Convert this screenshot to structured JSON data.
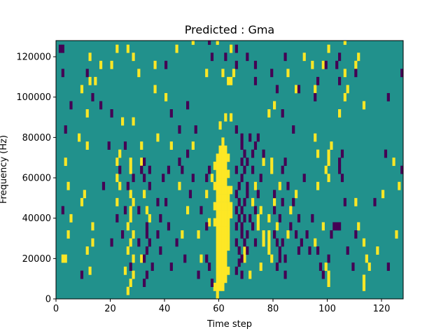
{
  "chart_data": {
    "type": "heatmap",
    "title": "Predicted : Gma",
    "xlabel": "Time step",
    "ylabel": "Frequency (Hz)",
    "xlim": [
      0,
      128
    ],
    "ylim": [
      0,
      128000
    ],
    "x_ticks": [
      0,
      20,
      40,
      60,
      80,
      100,
      120
    ],
    "x_tick_labels": [
      "0",
      "20",
      "40",
      "60",
      "80",
      "100",
      "120"
    ],
    "y_ticks": [
      0,
      20000,
      40000,
      60000,
      80000,
      100000,
      120000
    ],
    "y_tick_labels": [
      "0",
      "20000",
      "40000",
      "60000",
      "80000",
      "100000",
      "120000"
    ],
    "grid": false,
    "colormap": "viridis",
    "colors": {
      "background": "#21918c",
      "low": "#440154",
      "high": "#fde725"
    },
    "value_levels": [
      -1,
      0,
      1
    ],
    "cell_height_hz": 4000,
    "cell_width_steps": 1,
    "background_value": 0,
    "high_cells": [
      [
        26,
        2000
      ],
      [
        27,
        6000
      ],
      [
        27,
        26000
      ],
      [
        27,
        38000
      ],
      [
        27,
        42000
      ],
      [
        28,
        46000
      ],
      [
        28,
        30000
      ],
      [
        28,
        18000
      ],
      [
        28,
        10000
      ],
      [
        25,
        12000
      ],
      [
        26,
        22000
      ],
      [
        26,
        34000
      ],
      [
        27,
        50000
      ],
      [
        27,
        62000
      ],
      [
        27,
        66000
      ],
      [
        31,
        18000
      ],
      [
        31,
        66000
      ],
      [
        31,
        74000
      ],
      [
        32,
        50000
      ],
      [
        33,
        42000
      ],
      [
        34,
        38000
      ],
      [
        12,
        12000
      ],
      [
        13,
        26000
      ],
      [
        13,
        34000
      ],
      [
        11,
        22000
      ],
      [
        10,
        50000
      ],
      [
        9,
        46000
      ],
      [
        4,
        30000
      ],
      [
        5,
        38000
      ],
      [
        3,
        18000
      ],
      [
        2,
        18000
      ],
      [
        4,
        54000
      ],
      [
        3,
        66000
      ],
      [
        8,
        78000
      ],
      [
        11,
        74000
      ],
      [
        11,
        90000
      ],
      [
        22,
        66000
      ],
      [
        22,
        58000
      ],
      [
        22,
        46000
      ],
      [
        23,
        54000
      ],
      [
        23,
        70000
      ],
      [
        24,
        86000
      ],
      [
        28,
        86000
      ],
      [
        37,
        78000
      ],
      [
        42,
        74000
      ],
      [
        45,
        54000
      ],
      [
        46,
        30000
      ],
      [
        48,
        42000
      ],
      [
        50,
        74000
      ],
      [
        52,
        30000
      ],
      [
        53,
        18000
      ],
      [
        57,
        58000
      ],
      [
        58,
        54000
      ],
      [
        59,
        0
      ],
      [
        59,
        4000
      ],
      [
        59,
        8000
      ],
      [
        59,
        12000
      ],
      [
        59,
        16000
      ],
      [
        59,
        20000
      ],
      [
        59,
        24000
      ],
      [
        59,
        28000
      ],
      [
        59,
        32000
      ],
      [
        59,
        36000
      ],
      [
        59,
        40000
      ],
      [
        59,
        44000
      ],
      [
        59,
        48000
      ],
      [
        59,
        52000
      ],
      [
        59,
        56000
      ],
      [
        59,
        60000
      ],
      [
        59,
        64000
      ],
      [
        59,
        68000
      ],
      [
        60,
        4000
      ],
      [
        60,
        8000
      ],
      [
        60,
        12000
      ],
      [
        60,
        16000
      ],
      [
        60,
        20000
      ],
      [
        60,
        24000
      ],
      [
        60,
        28000
      ],
      [
        60,
        32000
      ],
      [
        60,
        36000
      ],
      [
        60,
        40000
      ],
      [
        60,
        44000
      ],
      [
        60,
        48000
      ],
      [
        60,
        52000
      ],
      [
        60,
        56000
      ],
      [
        60,
        60000
      ],
      [
        60,
        64000
      ],
      [
        60,
        68000
      ],
      [
        60,
        72000
      ],
      [
        61,
        4000
      ],
      [
        61,
        8000
      ],
      [
        61,
        12000
      ],
      [
        61,
        16000
      ],
      [
        61,
        20000
      ],
      [
        61,
        24000
      ],
      [
        61,
        28000
      ],
      [
        61,
        32000
      ],
      [
        61,
        36000
      ],
      [
        61,
        40000
      ],
      [
        61,
        44000
      ],
      [
        61,
        48000
      ],
      [
        61,
        52000
      ],
      [
        61,
        56000
      ],
      [
        61,
        60000
      ],
      [
        61,
        64000
      ],
      [
        61,
        68000
      ],
      [
        61,
        72000
      ],
      [
        61,
        76000
      ],
      [
        62,
        8000
      ],
      [
        62,
        12000
      ],
      [
        62,
        16000
      ],
      [
        62,
        20000
      ],
      [
        62,
        24000
      ],
      [
        62,
        28000
      ],
      [
        62,
        32000
      ],
      [
        62,
        36000
      ],
      [
        62,
        40000
      ],
      [
        62,
        44000
      ],
      [
        62,
        48000
      ],
      [
        62,
        52000
      ],
      [
        62,
        56000
      ],
      [
        62,
        60000
      ],
      [
        62,
        64000
      ],
      [
        62,
        68000
      ],
      [
        62,
        72000
      ],
      [
        63,
        12000
      ],
      [
        63,
        24000
      ],
      [
        63,
        28000
      ],
      [
        63,
        32000
      ],
      [
        63,
        36000
      ],
      [
        63,
        40000
      ],
      [
        63,
        44000
      ],
      [
        63,
        48000
      ],
      [
        63,
        52000
      ],
      [
        63,
        60000
      ],
      [
        63,
        68000
      ],
      [
        64,
        40000
      ],
      [
        64,
        44000
      ],
      [
        64,
        52000
      ],
      [
        58,
        4000
      ],
      [
        58,
        36000
      ],
      [
        58,
        44000
      ],
      [
        58,
        64000
      ],
      [
        62,
        88000
      ],
      [
        64,
        88000
      ],
      [
        60,
        84000
      ],
      [
        56,
        36000
      ],
      [
        55,
        50000
      ],
      [
        69,
        18000
      ],
      [
        69,
        22000
      ],
      [
        72,
        46000
      ],
      [
        73,
        54000
      ],
      [
        74,
        34000
      ],
      [
        74,
        38000
      ],
      [
        75,
        42000
      ],
      [
        76,
        26000
      ],
      [
        76,
        30000
      ],
      [
        75,
        14000
      ],
      [
        71,
        10000
      ],
      [
        76,
        66000
      ],
      [
        78,
        38000
      ],
      [
        78,
        30000
      ],
      [
        78,
        26000
      ],
      [
        78,
        22000
      ],
      [
        79,
        18000
      ],
      [
        79,
        62000
      ],
      [
        79,
        66000
      ],
      [
        80,
        46000
      ],
      [
        81,
        34000
      ],
      [
        82,
        54000
      ],
      [
        85,
        30000
      ],
      [
        86,
        42000
      ],
      [
        88,
        50000
      ],
      [
        99,
        14000
      ],
      [
        100,
        10000
      ],
      [
        100,
        6000
      ],
      [
        98,
        34000
      ],
      [
        99,
        62000
      ],
      [
        100,
        58000
      ],
      [
        100,
        66000
      ],
      [
        100,
        70000
      ],
      [
        101,
        74000
      ],
      [
        95,
        78000
      ],
      [
        96,
        70000
      ],
      [
        96,
        54000
      ],
      [
        95,
        26000
      ],
      [
        110,
        46000
      ],
      [
        111,
        34000
      ],
      [
        113,
        26000
      ],
      [
        114,
        18000
      ],
      [
        115,
        14000
      ],
      [
        113,
        8000
      ],
      [
        113,
        4000
      ],
      [
        118,
        22000
      ],
      [
        120,
        50000
      ],
      [
        124,
        66000
      ],
      [
        125,
        30000
      ],
      [
        126,
        54000
      ],
      [
        63,
        106000
      ],
      [
        64,
        106000
      ],
      [
        64,
        122000
      ],
      [
        65,
        110000
      ],
      [
        59,
        126000
      ],
      [
        61,
        110000
      ],
      [
        55,
        110000
      ],
      [
        50,
        126000
      ],
      [
        44,
        122000
      ],
      [
        40,
        98000
      ],
      [
        36,
        114000
      ],
      [
        36,
        102000
      ],
      [
        30,
        110000
      ],
      [
        28,
        118000
      ],
      [
        26,
        122000
      ],
      [
        22,
        122000
      ],
      [
        20,
        114000
      ],
      [
        16,
        114000
      ],
      [
        14,
        106000
      ],
      [
        12,
        106000
      ],
      [
        12,
        118000
      ],
      [
        9,
        102000
      ],
      [
        78,
        90000
      ],
      [
        80,
        94000
      ],
      [
        85,
        110000
      ],
      [
        88,
        102000
      ],
      [
        91,
        118000
      ],
      [
        98,
        114000
      ],
      [
        94,
        114000
      ],
      [
        95,
        102000
      ],
      [
        100,
        122000
      ],
      [
        104,
        90000
      ],
      [
        106,
        98000
      ],
      [
        106,
        110000
      ],
      [
        110,
        114000
      ],
      [
        111,
        118000
      ],
      [
        106,
        126000
      ],
      [
        107,
        102000
      ],
      [
        113,
        94000
      ]
    ],
    "low_cells": [
      [
        1,
        122000
      ],
      [
        2,
        122000
      ],
      [
        2,
        110000
      ],
      [
        3,
        82000
      ],
      [
        5,
        94000
      ],
      [
        2,
        42000
      ],
      [
        9,
        10000
      ],
      [
        13,
        98000
      ],
      [
        11,
        110000
      ],
      [
        16,
        94000
      ],
      [
        17,
        54000
      ],
      [
        19,
        74000
      ],
      [
        20,
        26000
      ],
      [
        20,
        90000
      ],
      [
        22,
        38000
      ],
      [
        23,
        62000
      ],
      [
        24,
        30000
      ],
      [
        25,
        74000
      ],
      [
        25,
        42000
      ],
      [
        26,
        54000
      ],
      [
        27,
        14000
      ],
      [
        28,
        58000
      ],
      [
        30,
        42000
      ],
      [
        30,
        26000
      ],
      [
        31,
        62000
      ],
      [
        32,
        66000
      ],
      [
        32,
        58000
      ],
      [
        32,
        6000
      ],
      [
        32,
        18000
      ],
      [
        33,
        22000
      ],
      [
        33,
        10000
      ],
      [
        33,
        30000
      ],
      [
        33,
        34000
      ],
      [
        34,
        26000
      ],
      [
        34,
        54000
      ],
      [
        34,
        62000
      ],
      [
        35,
        14000
      ],
      [
        37,
        30000
      ],
      [
        37,
        46000
      ],
      [
        38,
        22000
      ],
      [
        38,
        38000
      ],
      [
        39,
        58000
      ],
      [
        40,
        46000
      ],
      [
        41,
        34000
      ],
      [
        41,
        62000
      ],
      [
        42,
        14000
      ],
      [
        42,
        90000
      ],
      [
        44,
        26000
      ],
      [
        45,
        66000
      ],
      [
        45,
        82000
      ],
      [
        46,
        62000
      ],
      [
        47,
        18000
      ],
      [
        48,
        70000
      ],
      [
        48,
        94000
      ],
      [
        49,
        50000
      ],
      [
        50,
        58000
      ],
      [
        51,
        82000
      ],
      [
        52,
        10000
      ],
      [
        53,
        42000
      ],
      [
        55,
        18000
      ],
      [
        55,
        34000
      ],
      [
        56,
        14000
      ],
      [
        57,
        6000
      ],
      [
        55,
        58000
      ],
      [
        56,
        62000
      ],
      [
        66,
        82000
      ],
      [
        66,
        62000
      ],
      [
        66,
        50000
      ],
      [
        66,
        42000
      ],
      [
        66,
        34000
      ],
      [
        66,
        26000
      ],
      [
        66,
        12000
      ],
      [
        67,
        16000
      ],
      [
        67,
        22000
      ],
      [
        67,
        38000
      ],
      [
        67,
        46000
      ],
      [
        67,
        54000
      ],
      [
        68,
        10000
      ],
      [
        68,
        18000
      ],
      [
        68,
        30000
      ],
      [
        68,
        34000
      ],
      [
        68,
        42000
      ],
      [
        68,
        58000
      ],
      [
        68,
        66000
      ],
      [
        68,
        74000
      ],
      [
        68,
        78000
      ],
      [
        69,
        26000
      ],
      [
        69,
        38000
      ],
      [
        69,
        46000
      ],
      [
        69,
        62000
      ],
      [
        69,
        70000
      ],
      [
        70,
        22000
      ],
      [
        70,
        30000
      ],
      [
        70,
        50000
      ],
      [
        70,
        54000
      ],
      [
        70,
        66000
      ],
      [
        71,
        38000
      ],
      [
        71,
        78000
      ],
      [
        72,
        34000
      ],
      [
        72,
        62000
      ],
      [
        72,
        70000
      ],
      [
        73,
        26000
      ],
      [
        73,
        42000
      ],
      [
        73,
        74000
      ],
      [
        74,
        50000
      ],
      [
        74,
        78000
      ],
      [
        75,
        58000
      ],
      [
        76,
        70000
      ],
      [
        80,
        30000
      ],
      [
        80,
        42000
      ],
      [
        80,
        50000
      ],
      [
        81,
        14000
      ],
      [
        81,
        26000
      ],
      [
        82,
        18000
      ],
      [
        82,
        22000
      ],
      [
        82,
        38000
      ],
      [
        83,
        26000
      ],
      [
        83,
        46000
      ],
      [
        83,
        62000
      ],
      [
        84,
        18000
      ],
      [
        84,
        10000
      ],
      [
        84,
        66000
      ],
      [
        85,
        54000
      ],
      [
        86,
        34000
      ],
      [
        87,
        46000
      ],
      [
        88,
        30000
      ],
      [
        89,
        38000
      ],
      [
        89,
        22000
      ],
      [
        90,
        26000
      ],
      [
        91,
        58000
      ],
      [
        92,
        30000
      ],
      [
        93,
        22000
      ],
      [
        94,
        38000
      ],
      [
        96,
        22000
      ],
      [
        97,
        14000
      ],
      [
        98,
        10000
      ],
      [
        100,
        18000
      ],
      [
        101,
        30000
      ],
      [
        102,
        34000
      ],
      [
        103,
        34000
      ],
      [
        104,
        34000
      ],
      [
        104,
        62000
      ],
      [
        104,
        66000
      ],
      [
        105,
        58000
      ],
      [
        105,
        70000
      ],
      [
        106,
        46000
      ],
      [
        107,
        22000
      ],
      [
        109,
        14000
      ],
      [
        110,
        30000
      ],
      [
        84,
        118000
      ],
      [
        95,
        98000
      ],
      [
        96,
        106000
      ],
      [
        99,
        114000
      ],
      [
        103,
        114000
      ],
      [
        104,
        118000
      ],
      [
        104,
        106000
      ],
      [
        110,
        110000
      ],
      [
        117,
        46000
      ],
      [
        121,
        70000
      ],
      [
        122,
        14000
      ],
      [
        127,
        62000
      ],
      [
        127,
        110000
      ],
      [
        122,
        98000
      ],
      [
        62,
        118000
      ],
      [
        66,
        122000
      ],
      [
        66,
        114000
      ],
      [
        70,
        118000
      ],
      [
        73,
        114000
      ],
      [
        73,
        106000
      ],
      [
        79,
        110000
      ],
      [
        81,
        102000
      ],
      [
        83,
        90000
      ],
      [
        87,
        82000
      ],
      [
        89,
        102000
      ],
      [
        56,
        126000
      ],
      [
        57,
        118000
      ],
      [
        40,
        114000
      ]
    ]
  }
}
